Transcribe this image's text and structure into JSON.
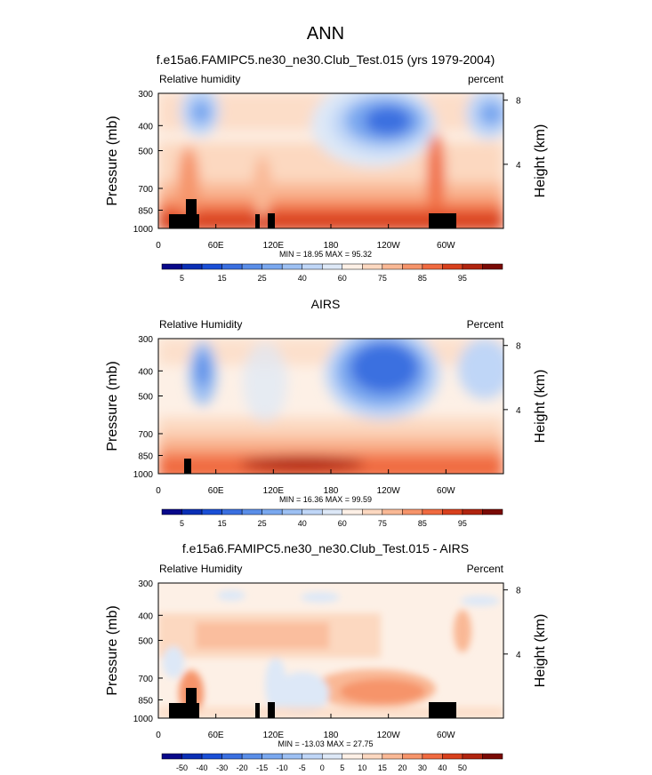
{
  "figure_title": "ANN",
  "chart_data": [
    {
      "type": "heatmap",
      "title": "f.e15a6.FAMIPC5.ne30_ne30.Club_Test.015 (yrs 1979-2004)",
      "left_label": "Relative humidity",
      "right_label": "percent",
      "ylabel": "Pressure (mb)",
      "y2label": "Height (km)",
      "x_ticks": [
        "0",
        "60E",
        "120E",
        "180",
        "120W",
        "60W"
      ],
      "x_tick_lon": [
        0,
        60,
        120,
        180,
        240,
        300
      ],
      "xlim": [
        0,
        360
      ],
      "y_ticks": [
        300,
        400,
        500,
        700,
        850,
        1000
      ],
      "ylim": [
        1000,
        300
      ],
      "y2_ticks": [
        8,
        4
      ],
      "stats": "MIN =  18.95  MAX =  95.32",
      "colorbar_labels": [
        "5",
        "15",
        "25",
        "40",
        "60",
        "75",
        "85",
        "95"
      ],
      "colorbar_levels": [
        0,
        5,
        10,
        15,
        20,
        25,
        30,
        40,
        50,
        60,
        70,
        75,
        80,
        85,
        90,
        95
      ],
      "min": 18.95,
      "max": 95.32
    },
    {
      "type": "heatmap",
      "title": "AIRS",
      "left_label": "Relative Humidity",
      "right_label": "Percent",
      "ylabel": "Pressure (mb)",
      "y2label": "Height (km)",
      "x_ticks": [
        "0",
        "60E",
        "120E",
        "180",
        "120W",
        "60W"
      ],
      "x_tick_lon": [
        0,
        60,
        120,
        180,
        240,
        300
      ],
      "xlim": [
        0,
        360
      ],
      "y_ticks": [
        300,
        400,
        500,
        700,
        850,
        1000
      ],
      "ylim": [
        1000,
        300
      ],
      "y2_ticks": [
        8,
        4
      ],
      "stats": "MIN =  16.36  MAX =  99.59",
      "colorbar_labels": [
        "5",
        "15",
        "25",
        "40",
        "60",
        "75",
        "85",
        "95"
      ],
      "colorbar_levels": [
        0,
        5,
        10,
        15,
        20,
        25,
        30,
        40,
        50,
        60,
        70,
        75,
        80,
        85,
        90,
        95
      ],
      "min": 16.36,
      "max": 99.59
    },
    {
      "type": "heatmap",
      "title": "f.e15a6.FAMIPC5.ne30_ne30.Club_Test.015 - AIRS",
      "left_label": "Relative Humidity",
      "right_label": "Percent",
      "ylabel": "Pressure (mb)",
      "y2label": "Height (km)",
      "x_ticks": [
        "0",
        "60E",
        "120E",
        "180",
        "120W",
        "60W"
      ],
      "x_tick_lon": [
        0,
        60,
        120,
        180,
        240,
        300
      ],
      "xlim": [
        0,
        360
      ],
      "y_ticks": [
        300,
        400,
        500,
        700,
        850,
        1000
      ],
      "ylim": [
        1000,
        300
      ],
      "y2_ticks": [
        8,
        4
      ],
      "stats": "MIN = -13.03  MAX =  27.75",
      "colorbar_labels": [
        "-50",
        "-40",
        "-30",
        "-20",
        "-15",
        "-10",
        "-5",
        "0",
        "5",
        "10",
        "15",
        "20",
        "30",
        "40",
        "50"
      ],
      "colorbar_levels": [
        -60,
        -50,
        -40,
        -30,
        -20,
        -15,
        -10,
        -5,
        0,
        5,
        10,
        15,
        20,
        30,
        40,
        50
      ],
      "min": -13.03,
      "max": 27.75
    }
  ],
  "colors": {
    "palette": [
      "#08088a",
      "#0a2fb5",
      "#1a4fd6",
      "#3a6fe0",
      "#5a8ee8",
      "#7aa8ef",
      "#9dc0f3",
      "#bfd6f7",
      "#dde8f7",
      "#fdf0e6",
      "#fcd8c0",
      "#f9b895",
      "#f6946a",
      "#f06a40",
      "#d8401d",
      "#b0240f",
      "#7a0a05"
    ],
    "land": "#000000"
  }
}
